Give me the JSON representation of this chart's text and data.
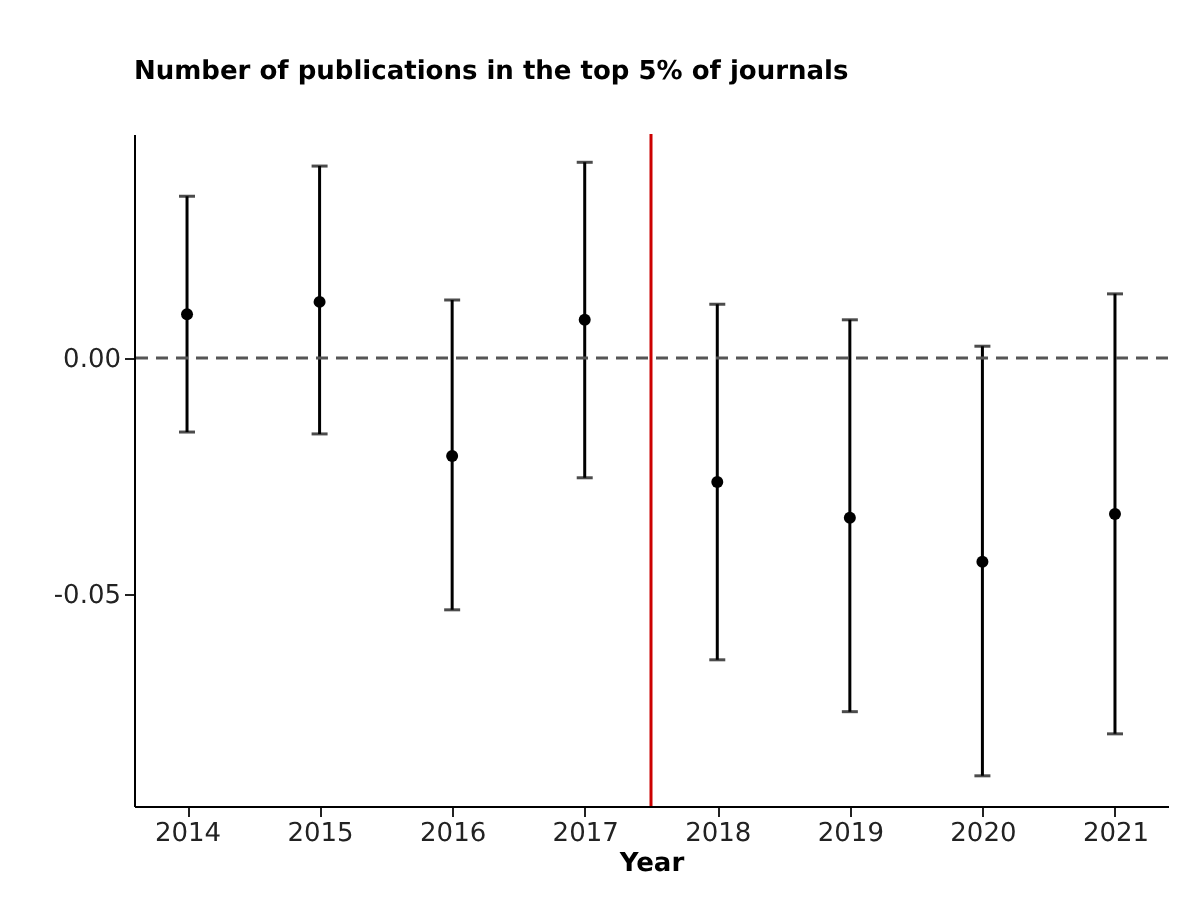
{
  "chart_data": {
    "type": "scatter",
    "title": "Number of publications in the top 5% of journals",
    "xlabel": "Year",
    "x": [
      2014,
      2015,
      2016,
      2017,
      2018,
      2019,
      2020,
      2021
    ],
    "series": [
      {
        "color": "#000000",
        "values": [
          0.0093,
          0.0119,
          -0.0208,
          0.0081,
          -0.0263,
          -0.0339,
          -0.0432,
          -0.0331
        ],
        "errors": [
          [
            -0.0157,
            0.0343
          ],
          [
            -0.0161,
            0.0407
          ],
          [
            -0.0534,
            0.0123
          ],
          [
            -0.0254,
            0.0415
          ],
          [
            -0.064,
            0.0114
          ],
          [
            -0.075,
            0.0081
          ],
          [
            -0.0886,
            0.0025
          ],
          [
            -0.0797,
            0.0136
          ]
        ]
      }
    ],
    "xlim": [
      2013.6,
      2021.4
    ],
    "xticks": [
      2014,
      2015,
      2016,
      2017,
      2018,
      2019,
      2020,
      2021
    ],
    "ylim": [
      -0.095,
      0.0475
    ],
    "yticks": [
      {
        "value": -0.05,
        "label": "-0.05"
      },
      {
        "value": 0,
        "label": "0.00"
      }
    ],
    "ref_lines": [
      {
        "axis": "y",
        "value": 0,
        "color": "#555555",
        "line_style": "dashed"
      },
      {
        "axis": "x",
        "value": 2017.5,
        "color": "#cc0000",
        "line_style": "solid"
      }
    ],
    "marker": "circle"
  }
}
